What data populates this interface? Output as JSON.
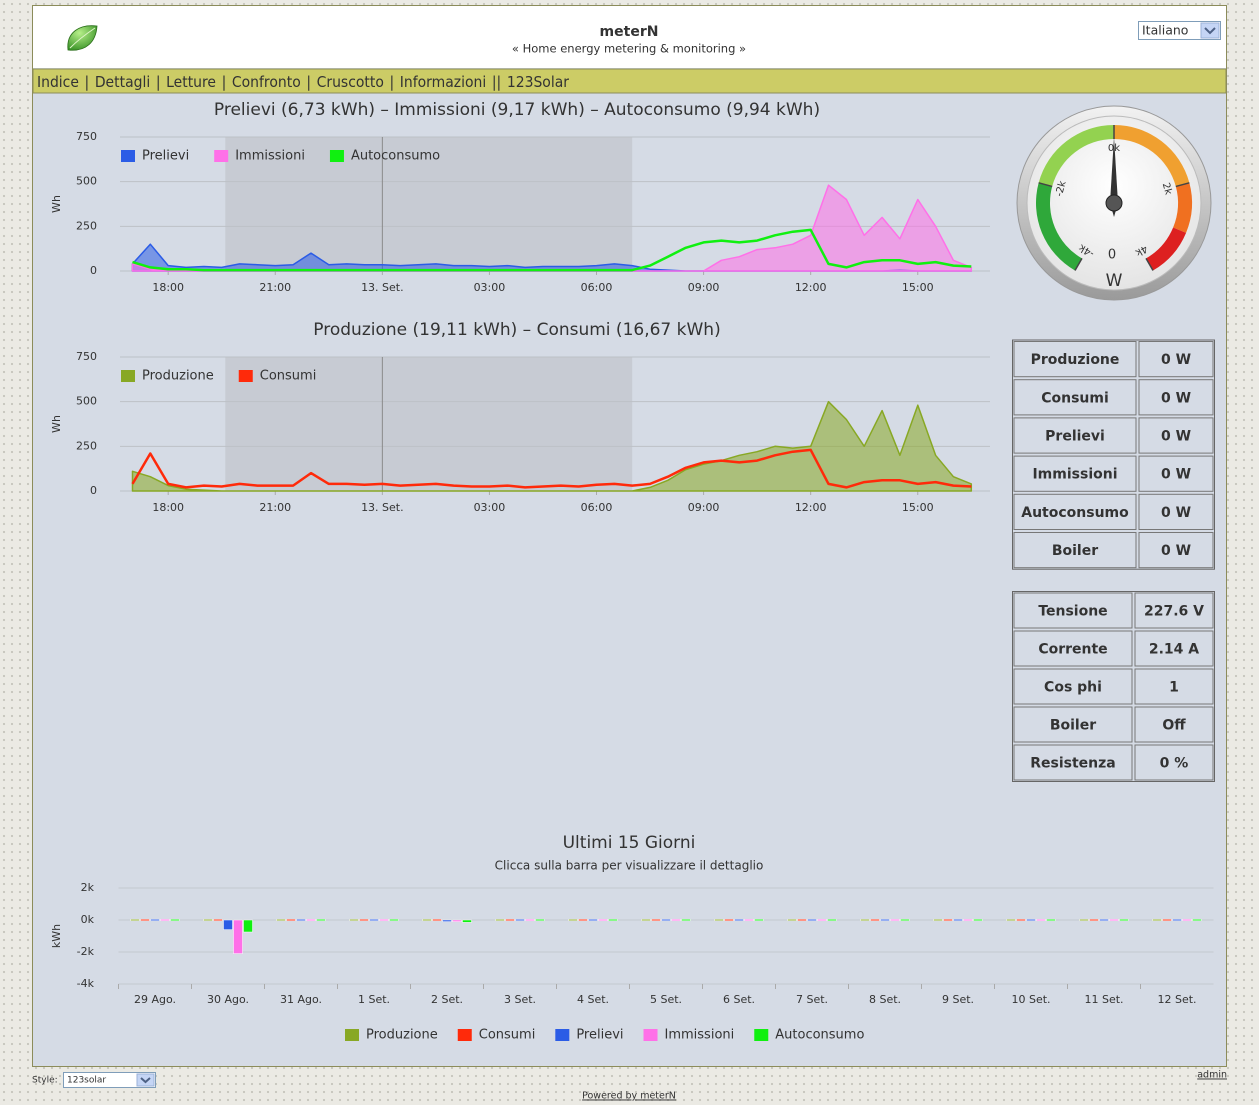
{
  "header": {
    "title": "meterN",
    "subtitle": "« Home energy metering & monitoring »",
    "language": "Italiano"
  },
  "menu": {
    "items": [
      "Indice",
      "Dettagli",
      "Letture",
      "Confronto",
      "Cruscotto",
      "Informazioni",
      "123Solar"
    ],
    "separators": [
      "|",
      "|",
      "|",
      "|",
      "|",
      "||"
    ]
  },
  "chart_data": [
    {
      "type": "line",
      "title": "Prelievi (6,73 kWh) – Immissioni (9,17 kWh) – Autoconsumo (9,94 kWh)",
      "y_label": "Wh",
      "x": [
        17,
        17.5,
        18,
        18.5,
        19,
        19.5,
        20,
        20.5,
        21,
        21.5,
        22,
        22.5,
        23,
        23.5,
        24,
        24.5,
        25,
        25.5,
        26,
        26.5,
        27,
        27.5,
        28,
        28.5,
        29,
        29.5,
        30,
        30.5,
        31,
        31.5,
        32,
        32.5,
        33,
        33.5,
        34,
        34.5,
        35,
        35.5,
        36,
        36.5,
        37,
        37.5,
        38,
        38.5,
        39,
        39.5,
        40,
        40.5
      ],
      "xlim": [
        16.65,
        40.8
      ],
      "xticks": [
        {
          "value": 18,
          "label": "18:00"
        },
        {
          "value": 21,
          "label": "21:00"
        },
        {
          "value": 24,
          "label": "13. Set."
        },
        {
          "value": 27,
          "label": "03:00"
        },
        {
          "value": 30,
          "label": "06:00"
        },
        {
          "value": 33,
          "label": "09:00"
        },
        {
          "value": 36,
          "label": "12:00"
        },
        {
          "value": 39,
          "label": "15:00"
        }
      ],
      "ylim": [
        0,
        750
      ],
      "yticks": [
        0,
        250,
        500,
        750
      ],
      "grid": true,
      "plot_bands": [
        {
          "from": 19.6,
          "to": 31
        }
      ],
      "plot_lines": [
        24
      ],
      "series": [
        {
          "name": "Prelievi",
          "color": "#2b5ce6",
          "area": true,
          "values": [
            40,
            150,
            30,
            20,
            25,
            20,
            40,
            35,
            30,
            35,
            100,
            35,
            40,
            35,
            35,
            30,
            35,
            40,
            30,
            30,
            25,
            30,
            20,
            25,
            25,
            25,
            30,
            40,
            30,
            10,
            5,
            0,
            0,
            0,
            0,
            0,
            0,
            0,
            0,
            0,
            0,
            0,
            0,
            5,
            0,
            0,
            0,
            0
          ]
        },
        {
          "name": "Immissioni",
          "color": "#ff70e8",
          "area": true,
          "values": [
            40,
            10,
            0,
            0,
            0,
            0,
            0,
            0,
            0,
            0,
            0,
            0,
            0,
            0,
            0,
            0,
            0,
            0,
            0,
            0,
            0,
            0,
            0,
            0,
            0,
            0,
            0,
            0,
            0,
            0,
            0,
            0,
            0,
            60,
            80,
            120,
            130,
            150,
            200,
            480,
            400,
            200,
            300,
            180,
            400,
            250,
            60,
            20
          ]
        },
        {
          "name": "Autoconsumo",
          "color": "#10f010",
          "area": false,
          "values": [
            50,
            20,
            10,
            10,
            5,
            5,
            5,
            5,
            5,
            5,
            5,
            5,
            5,
            5,
            5,
            5,
            5,
            5,
            5,
            5,
            5,
            5,
            5,
            5,
            5,
            5,
            5,
            5,
            5,
            30,
            80,
            130,
            160,
            170,
            160,
            170,
            200,
            220,
            230,
            40,
            20,
            50,
            60,
            60,
            40,
            50,
            30,
            25
          ]
        }
      ]
    },
    {
      "type": "line",
      "title": "Produzione (19,11 kWh) – Consumi (16,67 kWh)",
      "y_label": "Wh",
      "x": [
        17,
        17.5,
        18,
        18.5,
        19,
        19.5,
        20,
        20.5,
        21,
        21.5,
        22,
        22.5,
        23,
        23.5,
        24,
        24.5,
        25,
        25.5,
        26,
        26.5,
        27,
        27.5,
        28,
        28.5,
        29,
        29.5,
        30,
        30.5,
        31,
        31.5,
        32,
        32.5,
        33,
        33.5,
        34,
        34.5,
        35,
        35.5,
        36,
        36.5,
        37,
        37.5,
        38,
        38.5,
        39,
        39.5,
        40,
        40.5
      ],
      "xlim": [
        16.65,
        40.8
      ],
      "xticks": [
        {
          "value": 18,
          "label": "18:00"
        },
        {
          "value": 21,
          "label": "21:00"
        },
        {
          "value": 24,
          "label": "13. Set."
        },
        {
          "value": 27,
          "label": "03:00"
        },
        {
          "value": 30,
          "label": "06:00"
        },
        {
          "value": 33,
          "label": "09:00"
        },
        {
          "value": 36,
          "label": "12:00"
        },
        {
          "value": 39,
          "label": "15:00"
        }
      ],
      "ylim": [
        0,
        750
      ],
      "yticks": [
        0,
        250,
        500,
        750
      ],
      "grid": true,
      "plot_bands": [
        {
          "from": 19.6,
          "to": 31
        }
      ],
      "plot_lines": [
        24
      ],
      "series": [
        {
          "name": "Produzione",
          "color": "#88a824",
          "area": true,
          "values": [
            110,
            80,
            30,
            10,
            5,
            0,
            0,
            0,
            0,
            0,
            0,
            0,
            0,
            0,
            0,
            0,
            0,
            0,
            0,
            0,
            0,
            0,
            0,
            0,
            0,
            0,
            0,
            0,
            0,
            20,
            60,
            120,
            150,
            170,
            200,
            220,
            250,
            240,
            250,
            500,
            400,
            250,
            450,
            200,
            480,
            200,
            80,
            40
          ]
        },
        {
          "name": "Consumi",
          "color": "#ff2a0a",
          "area": false,
          "values": [
            40,
            210,
            40,
            20,
            30,
            25,
            40,
            30,
            30,
            30,
            100,
            40,
            40,
            35,
            40,
            30,
            35,
            40,
            30,
            25,
            25,
            30,
            20,
            25,
            30,
            25,
            35,
            40,
            30,
            40,
            80,
            130,
            160,
            170,
            160,
            170,
            200,
            220,
            230,
            40,
            20,
            50,
            60,
            60,
            40,
            50,
            30,
            25
          ]
        }
      ]
    },
    {
      "type": "bar",
      "title": "Ultimi 15 Giorni",
      "subtitle": "Clicca sulla barra per visualizzare il dettaglio",
      "y_label": "kWh",
      "categories": [
        "29 Ago.",
        "30 Ago.",
        "31 Ago.",
        "1 Set.",
        "2 Set.",
        "3 Set.",
        "4 Set.",
        "5 Set.",
        "6 Set.",
        "7 Set.",
        "8 Set.",
        "9 Set.",
        "10 Set.",
        "11 Set.",
        "12 Set."
      ],
      "ylim": [
        -4000,
        2000
      ],
      "yticks": [
        {
          "value": 2000,
          "label": "2k"
        },
        {
          "value": 0,
          "label": "0k"
        },
        {
          "value": -2000,
          "label": "-2k"
        },
        {
          "value": -4000,
          "label": "-4k"
        }
      ],
      "grid": true,
      "series": [
        {
          "name": "Produzione",
          "color": "#88a824",
          "values": [
            0,
            0,
            0,
            0,
            0,
            0,
            0,
            0,
            0,
            0,
            0,
            0,
            0,
            0,
            0
          ]
        },
        {
          "name": "Consumi",
          "color": "#ff2a0a",
          "values": [
            0,
            0,
            0,
            0,
            0,
            0,
            0,
            0,
            0,
            0,
            0,
            0,
            0,
            0,
            0
          ]
        },
        {
          "name": "Prelievi",
          "color": "#2b5ce6",
          "values": [
            0,
            -600,
            0,
            0,
            -100,
            0,
            0,
            0,
            0,
            0,
            0,
            0,
            0,
            0,
            0
          ]
        },
        {
          "name": "Immissioni",
          "color": "#ff70e8",
          "values": [
            0,
            -2100,
            0,
            0,
            -100,
            0,
            0,
            0,
            0,
            0,
            0,
            0,
            0,
            0,
            0
          ]
        },
        {
          "name": "Autoconsumo",
          "color": "#10f010",
          "values": [
            0,
            -750,
            0,
            0,
            -150,
            0,
            0,
            0,
            0,
            0,
            0,
            0,
            0,
            0,
            0
          ]
        }
      ]
    },
    {
      "type": "gauge",
      "lim": [
        -4000,
        4000
      ],
      "ticks": [
        {
          "value": -4000,
          "label": "-4k"
        },
        {
          "value": -2000,
          "label": "-2k"
        },
        {
          "value": 0,
          "label": "0k"
        },
        {
          "value": 2000,
          "label": "2k"
        },
        {
          "value": 4000,
          "label": "4k"
        }
      ],
      "bands": [
        {
          "from": -4000,
          "to": -2000,
          "color": "#2fa83a"
        },
        {
          "from": -2000,
          "to": 0,
          "color": "#93d250"
        },
        {
          "from": 0,
          "to": 2000,
          "color": "#f0a030"
        },
        {
          "from": 2000,
          "to": 3000,
          "color": "#f07020"
        },
        {
          "from": 3000,
          "to": 4000,
          "color": "#dd2020"
        }
      ],
      "value": 0,
      "unit": "W"
    }
  ],
  "tables": [
    {
      "rows": [
        [
          "Produzione",
          "0 W"
        ],
        [
          "Consumi",
          "0 W"
        ],
        [
          "Prelievi",
          "0 W"
        ],
        [
          "Immissioni",
          "0 W"
        ],
        [
          "Autoconsumo",
          "0 W"
        ],
        [
          "Boiler",
          "0 W"
        ]
      ]
    },
    {
      "rows": [
        [
          "Tensione",
          "227.6 V"
        ],
        [
          "Corrente",
          "2.14 A"
        ],
        [
          "Cos phi",
          "1"
        ],
        [
          "Boiler",
          "Off"
        ],
        [
          "Resistenza",
          "0 %"
        ]
      ]
    }
  ],
  "footer": {
    "style_label": "Style:",
    "style_value": "123solar",
    "admin": "admin",
    "powered_by": "Powered by meterN"
  }
}
